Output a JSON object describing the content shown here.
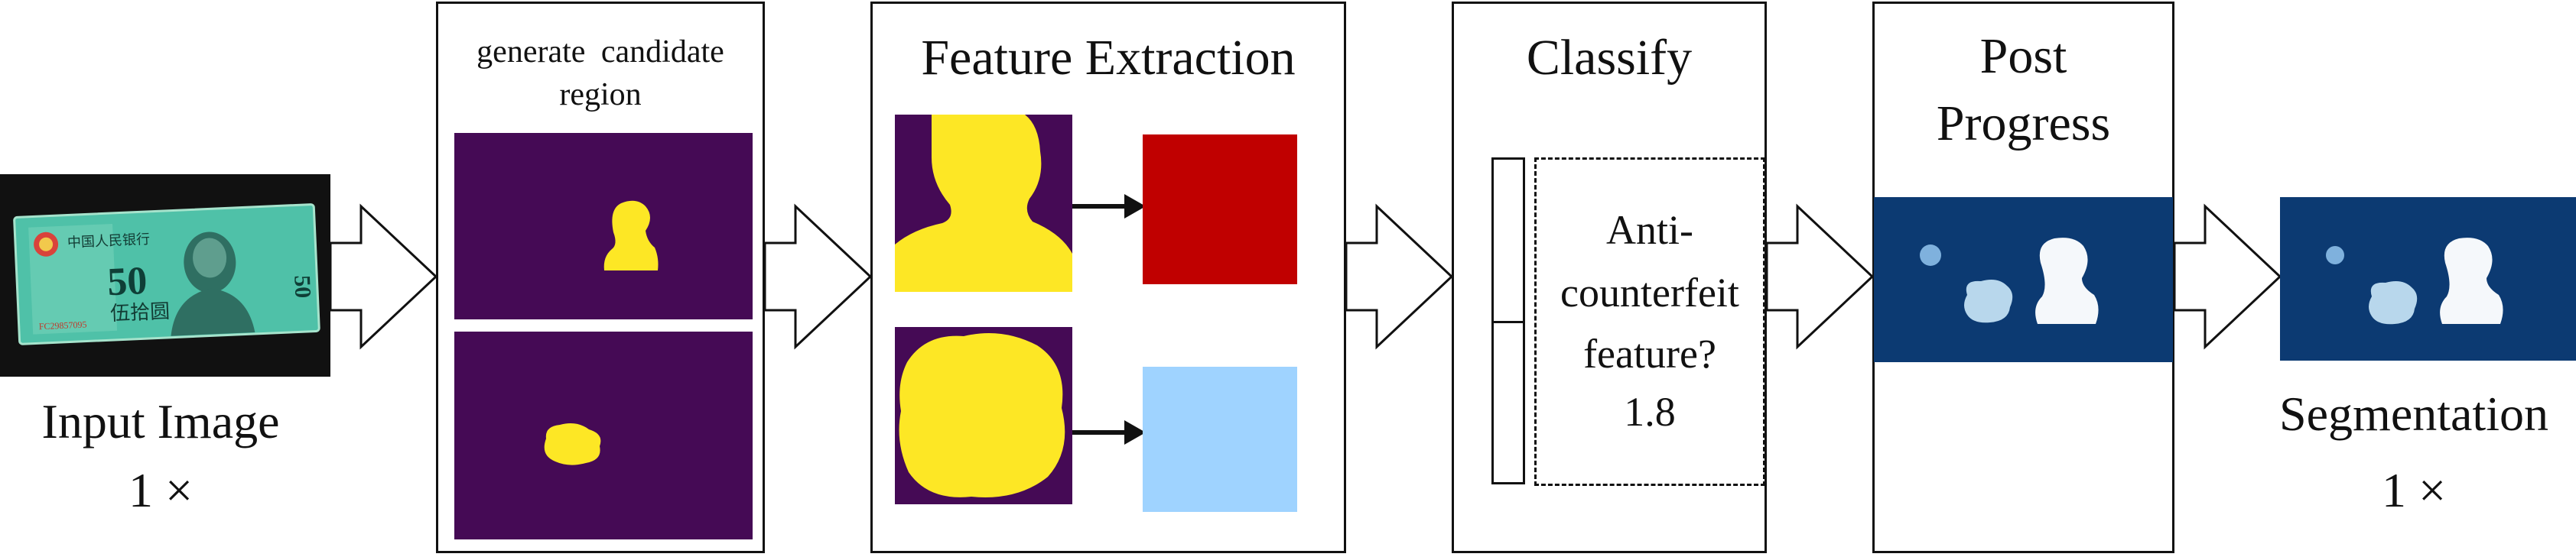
{
  "input": {
    "label": "Input Image",
    "scale": "1 ×",
    "banknote": {
      "denomination": "50",
      "bank_text": "中国人民银行",
      "chinese_value": "伍拾圆",
      "serial_number": "FC29857095",
      "colors": {
        "note_base": "#4fc1a8",
        "note_light": "#a6e3cc",
        "portrait": "#2f6f62",
        "background": "#111111"
      }
    }
  },
  "stages": [
    {
      "id": "candidate",
      "title": "generate candidate region"
    },
    {
      "id": "feature",
      "title": "Feature Extraction"
    },
    {
      "id": "classify",
      "title": "Classify",
      "question": "Anti-counterfeit feature?",
      "question_lines": [
        "Anti-",
        "counterfeit",
        "feature?"
      ],
      "value": "1.8"
    },
    {
      "id": "post",
      "title_lines": [
        "Post",
        "Progress"
      ]
    }
  ],
  "output": {
    "label": "Segmentation",
    "scale": "1 ×"
  },
  "colors": {
    "mask_background": "#450a55",
    "mask_foreground": "#fde725",
    "feature_red": "#c00000",
    "feature_lightblue": "#9fd3ff",
    "segmentation_background": "#0c3a72",
    "segment_white": "#f5f8fb",
    "segment_pale_blue": "#b8d7ec",
    "segment_blue": "#7fb1dd"
  }
}
